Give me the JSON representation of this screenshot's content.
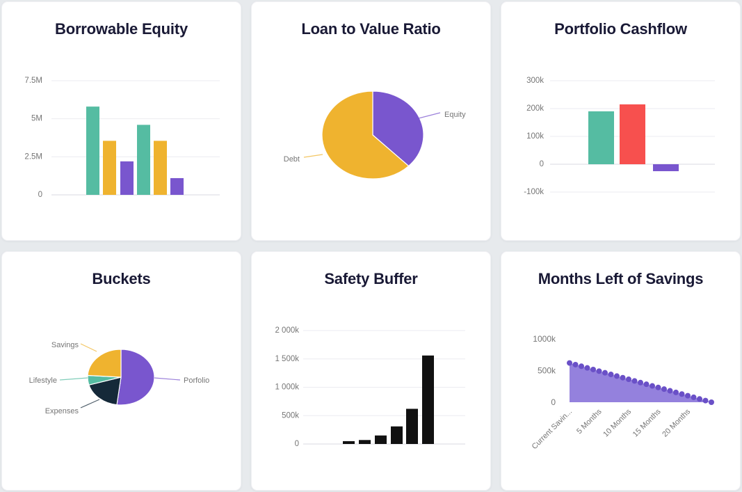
{
  "page": {
    "background_color": "#E7EAED",
    "card_background_color": "#FFFFFF"
  },
  "colors": {
    "teal": "#55BCA2",
    "yellow": "#EFB32F",
    "purple": "#7956CE",
    "red": "#F7504E",
    "navy": "#152939",
    "black": "#111111",
    "area_fill": "#8E7ADB",
    "area_dot": "#6A50C7",
    "title_text": "#191935",
    "axis_text": "#757575",
    "gridline": "#EBEBF1",
    "zero_line": "#D9D9E2"
  },
  "chart_data": [
    {
      "id": "borrowable-equity",
      "type": "bar",
      "title": "Borrowable Equity",
      "ylabel": "",
      "ylim": [
        0,
        7.5
      ],
      "unit": "M",
      "grid": true,
      "yticks": [
        {
          "label": "7.5M",
          "value": 7.5
        },
        {
          "label": "5M",
          "value": 5
        },
        {
          "label": "2.5M",
          "value": 2.5
        },
        {
          "label": "0",
          "value": 0
        }
      ],
      "values": [
        5.8,
        3.55,
        2.2,
        4.6,
        3.55,
        1.1
      ],
      "bar_colors": [
        "teal",
        "yellow",
        "purple",
        "teal",
        "yellow",
        "purple"
      ]
    },
    {
      "id": "loan-to-value-ratio",
      "type": "pie",
      "title": "Loan to Value Ratio",
      "slices": [
        {
          "label": "Equity",
          "pct": 37.5,
          "color": "purple"
        },
        {
          "label": "Debt",
          "pct": 62.5,
          "color": "yellow"
        }
      ]
    },
    {
      "id": "portfolio-cashflow",
      "type": "bar",
      "title": "Portfolio Cashflow",
      "ylabel": "",
      "ylim": [
        -100,
        300
      ],
      "unit": "k",
      "grid": true,
      "yticks": [
        {
          "label": "300k",
          "value": 300
        },
        {
          "label": "200k",
          "value": 200
        },
        {
          "label": "100k",
          "value": 100
        },
        {
          "label": "0",
          "value": 0
        },
        {
          "label": "-100k",
          "value": -100
        }
      ],
      "values": [
        190,
        215,
        -25
      ],
      "bar_colors": [
        "teal",
        "red",
        "purple"
      ]
    },
    {
      "id": "buckets",
      "type": "pie",
      "title": "Buckets",
      "slices": [
        {
          "label": "Porfolio",
          "pct": 52,
          "color": "purple"
        },
        {
          "label": "Expenses",
          "pct": 18.5,
          "color": "navy"
        },
        {
          "label": "Lifestyle",
          "pct": 5.5,
          "color": "teal"
        },
        {
          "label": "Savings",
          "pct": 24,
          "color": "yellow"
        }
      ]
    },
    {
      "id": "safety-buffer",
      "type": "bar",
      "title": "Safety Buffer",
      "ylabel": "",
      "ylim": [
        0,
        2000
      ],
      "unit": "k",
      "grid": true,
      "yticks": [
        {
          "label": "2 000k",
          "value": 2000
        },
        {
          "label": "1 500k",
          "value": 1500
        },
        {
          "label": "1 000k",
          "value": 1000
        },
        {
          "label": "500k",
          "value": 500
        },
        {
          "label": "0",
          "value": 0
        }
      ],
      "values": [
        50,
        70,
        150,
        310,
        620,
        1560
      ],
      "bar_colors": [
        "black",
        "black",
        "black",
        "black",
        "black",
        "black"
      ]
    },
    {
      "id": "months-left-of-savings",
      "type": "area",
      "title": "Months Left of Savings",
      "ylabel": "",
      "ylim": [
        0,
        1000
      ],
      "unit": "k",
      "yticks": [
        {
          "label": "1000k",
          "value": 1000
        },
        {
          "label": "500k",
          "value": 500
        },
        {
          "label": "0",
          "value": 0
        }
      ],
      "values": [
        620,
        594,
        568,
        542,
        517,
        491,
        465,
        439,
        413,
        388,
        362,
        336,
        310,
        284,
        258,
        233,
        207,
        181,
        155,
        129,
        103,
        78,
        52,
        26,
        0
      ],
      "xticks": [
        {
          "label": "Current Savin...",
          "index": 0
        },
        {
          "label": "5 Months",
          "index": 5
        },
        {
          "label": "10 Months",
          "index": 10
        },
        {
          "label": "15 Months",
          "index": 15
        },
        {
          "label": "20 Months",
          "index": 20
        }
      ]
    }
  ]
}
